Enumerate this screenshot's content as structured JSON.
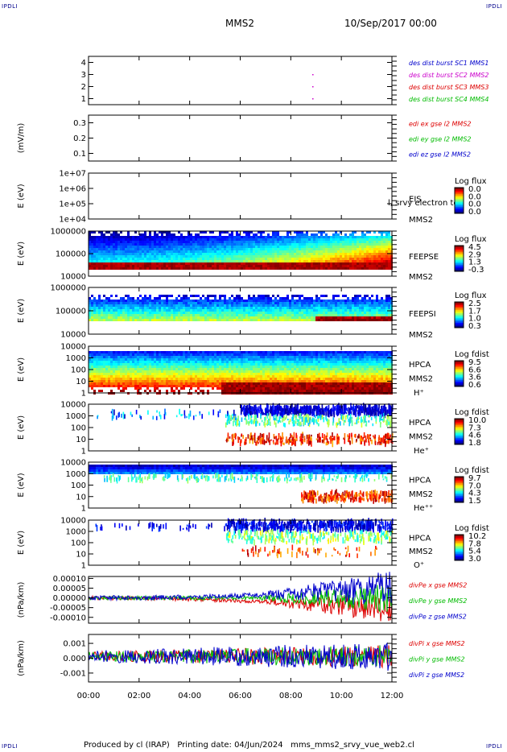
{
  "header": {
    "corner_label": "IPDLI",
    "spacecraft": "MMS2",
    "date": "10/Sep/2017 00:00"
  },
  "footer": {
    "text": "Produced by cl (IRAP)   Printing date: 04/Jun/2024   mms_mms2_srvy_vue_web2.cl"
  },
  "chart_data": [
    {
      "type": "scatter",
      "panel": "burst-flags",
      "ylabel": "",
      "ylim": [
        0.5,
        4.5
      ],
      "yticks": [
        "4",
        "3",
        "2",
        "1"
      ],
      "ytick_values": [
        4,
        3,
        2,
        1
      ],
      "series": [
        {
          "name": "des dist burst SC1 MMS1",
          "color": "#0000cc",
          "values": []
        },
        {
          "name": "des dist burst SC2 MMS2",
          "color": "#cc00cc",
          "values": [
            {
              "x": 8.85,
              "y": 3
            },
            {
              "x": 8.85,
              "y": 2
            },
            {
              "x": 8.85,
              "y": 1
            }
          ]
        },
        {
          "name": "des dist burst SC3 MMS3",
          "color": "#dd0000",
          "values": []
        },
        {
          "name": "des dist burst SC4 MMS4",
          "color": "#00bb00",
          "values": []
        }
      ]
    },
    {
      "type": "line",
      "panel": "edi",
      "ylabel": "(mV/m)",
      "ylim": [
        0.05,
        0.35
      ],
      "yticks": [
        "0.3",
        "0.2",
        "0.1"
      ],
      "ytick_values": [
        0.3,
        0.2,
        0.1
      ],
      "series": [
        {
          "name": "edi ex gse l2 MMS2",
          "color": "#dd0000",
          "values": []
        },
        {
          "name": "edi ey gse l2 MMS2",
          "color": "#00bb00",
          "values": []
        },
        {
          "name": "edi ez gse l2 MMS2",
          "color": "#0000cc",
          "values": []
        }
      ]
    },
    {
      "type": "heatmap",
      "panel": "eis",
      "ylabel": "E (eV)",
      "yscale": "log",
      "ylim": [
        10000.0,
        10000000.0
      ],
      "yticks": [
        "1e+07",
        "1e+06",
        "1e+05",
        "1e+04"
      ],
      "ytick_values": [
        10000000.0,
        1000000.0,
        100000.0,
        10000.0
      ],
      "labels": [
        "EIS",
        "MMS2"
      ],
      "overlay_text": "l, srvy electron to",
      "colorbar": {
        "title": "Log flux",
        "ticks": [
          "0.0",
          "0.0",
          "0.0",
          "0.0"
        ]
      }
    },
    {
      "type": "heatmap",
      "panel": "feeps-electron",
      "ylabel": "E (eV)",
      "yscale": "log",
      "ylim": [
        10000.0,
        1000000.0
      ],
      "yticks": [
        "1000000",
        "100000",
        "10000"
      ],
      "ytick_values": [
        1000000.0,
        100000.0,
        10000.0
      ],
      "labels": [
        "FEEPSE",
        "MMS2"
      ],
      "colorbar": {
        "title": "Log flux",
        "ticks": [
          "4.5",
          "2.9",
          "1.3",
          "-0.3"
        ]
      }
    },
    {
      "type": "heatmap",
      "panel": "feeps-ion",
      "ylabel": "E (eV)",
      "yscale": "log",
      "ylim": [
        10000.0,
        1000000.0
      ],
      "yticks": [
        "1000000",
        "100000",
        "10000"
      ],
      "ytick_values": [
        1000000.0,
        100000.0,
        10000.0
      ],
      "labels": [
        "FEEPSI",
        "MMS2"
      ],
      "colorbar": {
        "title": "Log flux",
        "ticks": [
          "2.5",
          "1.7",
          "1.0",
          "0.3"
        ]
      }
    },
    {
      "type": "heatmap",
      "panel": "hpca-h",
      "ylabel": "E (eV)",
      "yscale": "log",
      "ylim": [
        1,
        10000.0
      ],
      "yticks": [
        "10000",
        "1000",
        "100",
        "10",
        "1"
      ],
      "ytick_values": [
        10000.0,
        1000.0,
        100,
        10,
        1
      ],
      "labels": [
        "HPCA",
        "MMS2",
        "H⁺"
      ],
      "colorbar": {
        "title": "Log fdist",
        "ticks": [
          "9.5",
          "6.6",
          "3.6",
          "0.6"
        ]
      }
    },
    {
      "type": "heatmap",
      "panel": "hpca-he",
      "ylabel": "E (eV)",
      "yscale": "log",
      "ylim": [
        1,
        10000.0
      ],
      "yticks": [
        "10000",
        "1000",
        "100",
        "10",
        "1"
      ],
      "ytick_values": [
        10000.0,
        1000.0,
        100,
        10,
        1
      ],
      "labels": [
        "HPCA",
        "MMS2",
        "He⁺"
      ],
      "colorbar": {
        "title": "Log fdist",
        "ticks": [
          "10.0",
          "7.3",
          "4.6",
          "1.8"
        ]
      }
    },
    {
      "type": "heatmap",
      "panel": "hpca-he2",
      "ylabel": "E (eV)",
      "yscale": "log",
      "ylim": [
        1,
        10000.0
      ],
      "yticks": [
        "10000",
        "1000",
        "100",
        "10",
        "1"
      ],
      "ytick_values": [
        10000.0,
        1000.0,
        100,
        10,
        1
      ],
      "labels": [
        "HPCA",
        "MMS2",
        "He⁺⁺"
      ],
      "colorbar": {
        "title": "Log fdist",
        "ticks": [
          "9.7",
          "7.0",
          "4.3",
          "1.5"
        ]
      }
    },
    {
      "type": "heatmap",
      "panel": "hpca-o",
      "ylabel": "E (eV)",
      "yscale": "log",
      "ylim": [
        1,
        10000.0
      ],
      "yticks": [
        "10000",
        "1000",
        "100",
        "10",
        "1"
      ],
      "ytick_values": [
        10000.0,
        1000.0,
        100,
        10,
        1
      ],
      "labels": [
        "HPCA",
        "MMS2",
        "O⁺"
      ],
      "colorbar": {
        "title": "Log fdist",
        "ticks": [
          "10.2",
          "7.8",
          "5.4",
          "3.0"
        ]
      }
    },
    {
      "type": "line",
      "panel": "divpe",
      "ylabel": "(nPa/km)",
      "ylim": [
        -0.00013,
        0.00011
      ],
      "yticks": [
        "0.00010",
        "0.00005",
        "0.00000",
        "-0.00005",
        "-0.00010"
      ],
      "ytick_values": [
        0.0001,
        5e-05,
        0,
        -5e-05,
        -0.0001
      ],
      "series": [
        {
          "name": "divPe x gse MMS2",
          "color": "#dd0000"
        },
        {
          "name": "divPe y gse MMS2",
          "color": "#00bb00"
        },
        {
          "name": "divPe z gse MMS2",
          "color": "#0000cc"
        }
      ]
    },
    {
      "type": "line",
      "panel": "divpi",
      "ylabel": "(nPa/km)",
      "ylim": [
        -0.0016,
        0.0016
      ],
      "yticks": [
        "0.001",
        "0.000",
        "-0.001"
      ],
      "ytick_values": [
        0.001,
        0,
        -0.001
      ],
      "series": [
        {
          "name": "divPi x gse MMS2",
          "color": "#dd0000"
        },
        {
          "name": "divPi y gse MMS2",
          "color": "#00bb00"
        },
        {
          "name": "divPi z gse MMS2",
          "color": "#0000cc"
        }
      ]
    }
  ],
  "x_axis": {
    "xlim": [
      0,
      12
    ],
    "ticks": [
      "00:00",
      "02:00",
      "04:00",
      "06:00",
      "08:00",
      "10:00",
      "12:00"
    ],
    "tick_values": [
      0,
      2,
      4,
      6,
      8,
      10,
      12
    ]
  }
}
